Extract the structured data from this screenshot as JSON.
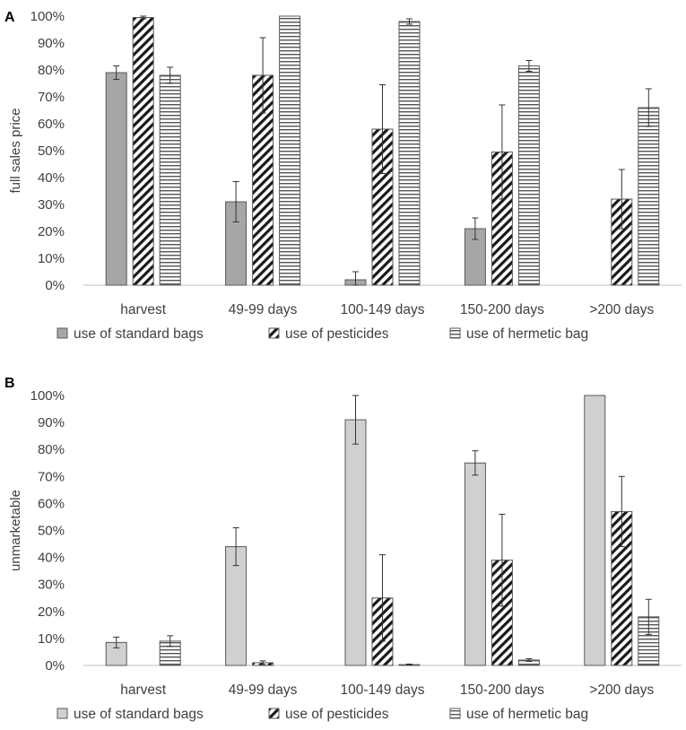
{
  "colors": {
    "standard_bag_a": "#a6a6a6",
    "standard_bag_b": "#d0d0d0",
    "bar_stroke": "#595959",
    "axis": "#bfbfbf",
    "text": "#404040"
  },
  "chart_data": [
    {
      "panel": "A",
      "type": "bar",
      "ylabel": "full sales price",
      "xlabel": "",
      "ylim": [
        0,
        100
      ],
      "yticks": [
        "0%",
        "10%",
        "20%",
        "30%",
        "40%",
        "50%",
        "60%",
        "70%",
        "80%",
        "90%",
        "100%"
      ],
      "grid": false,
      "legend_position": "bottom",
      "categories": [
        "harvest",
        "49-99 days",
        "100-149 days",
        "150-200 days",
        ">200 days"
      ],
      "series": [
        {
          "name": "use of standard bags",
          "pattern": "solid-dark",
          "values": [
            79,
            31,
            2,
            21,
            null
          ],
          "errors": [
            2.5,
            7.5,
            3,
            4,
            null
          ]
        },
        {
          "name": "use of pesticides",
          "pattern": "diagonal",
          "values": [
            99.5,
            78,
            58,
            49.5,
            32
          ],
          "errors": [
            0.5,
            14,
            16.5,
            17.5,
            11
          ]
        },
        {
          "name": "use of hermetic bag",
          "pattern": "horizontal",
          "values": [
            78,
            100,
            98,
            81.5,
            66
          ],
          "errors": [
            3,
            0,
            1,
            2,
            7
          ]
        }
      ]
    },
    {
      "panel": "B",
      "type": "bar",
      "ylabel": "unmarketable",
      "xlabel": "",
      "ylim": [
        0,
        100
      ],
      "yticks": [
        "0%",
        "10%",
        "20%",
        "30%",
        "40%",
        "50%",
        "60%",
        "70%",
        "80%",
        "90%",
        "100%"
      ],
      "grid": false,
      "legend_position": "bottom",
      "categories": [
        "harvest",
        "49-99 days",
        "100-149 days",
        "150-200 days",
        ">200 days"
      ],
      "series": [
        {
          "name": "use of standard bags",
          "pattern": "solid-light",
          "values": [
            8.5,
            44,
            91,
            75,
            100
          ],
          "errors": [
            2,
            7,
            9,
            4.5,
            0
          ]
        },
        {
          "name": "use of pesticides",
          "pattern": "diagonal",
          "values": [
            null,
            1,
            25,
            39,
            57
          ],
          "errors": [
            null,
            0.7,
            16,
            17,
            13
          ]
        },
        {
          "name": "use of hermetic bag",
          "pattern": "horizontal",
          "values": [
            9,
            null,
            0.3,
            2,
            18
          ],
          "errors": [
            2,
            null,
            0.2,
            0.5,
            6.5
          ]
        }
      ]
    }
  ]
}
